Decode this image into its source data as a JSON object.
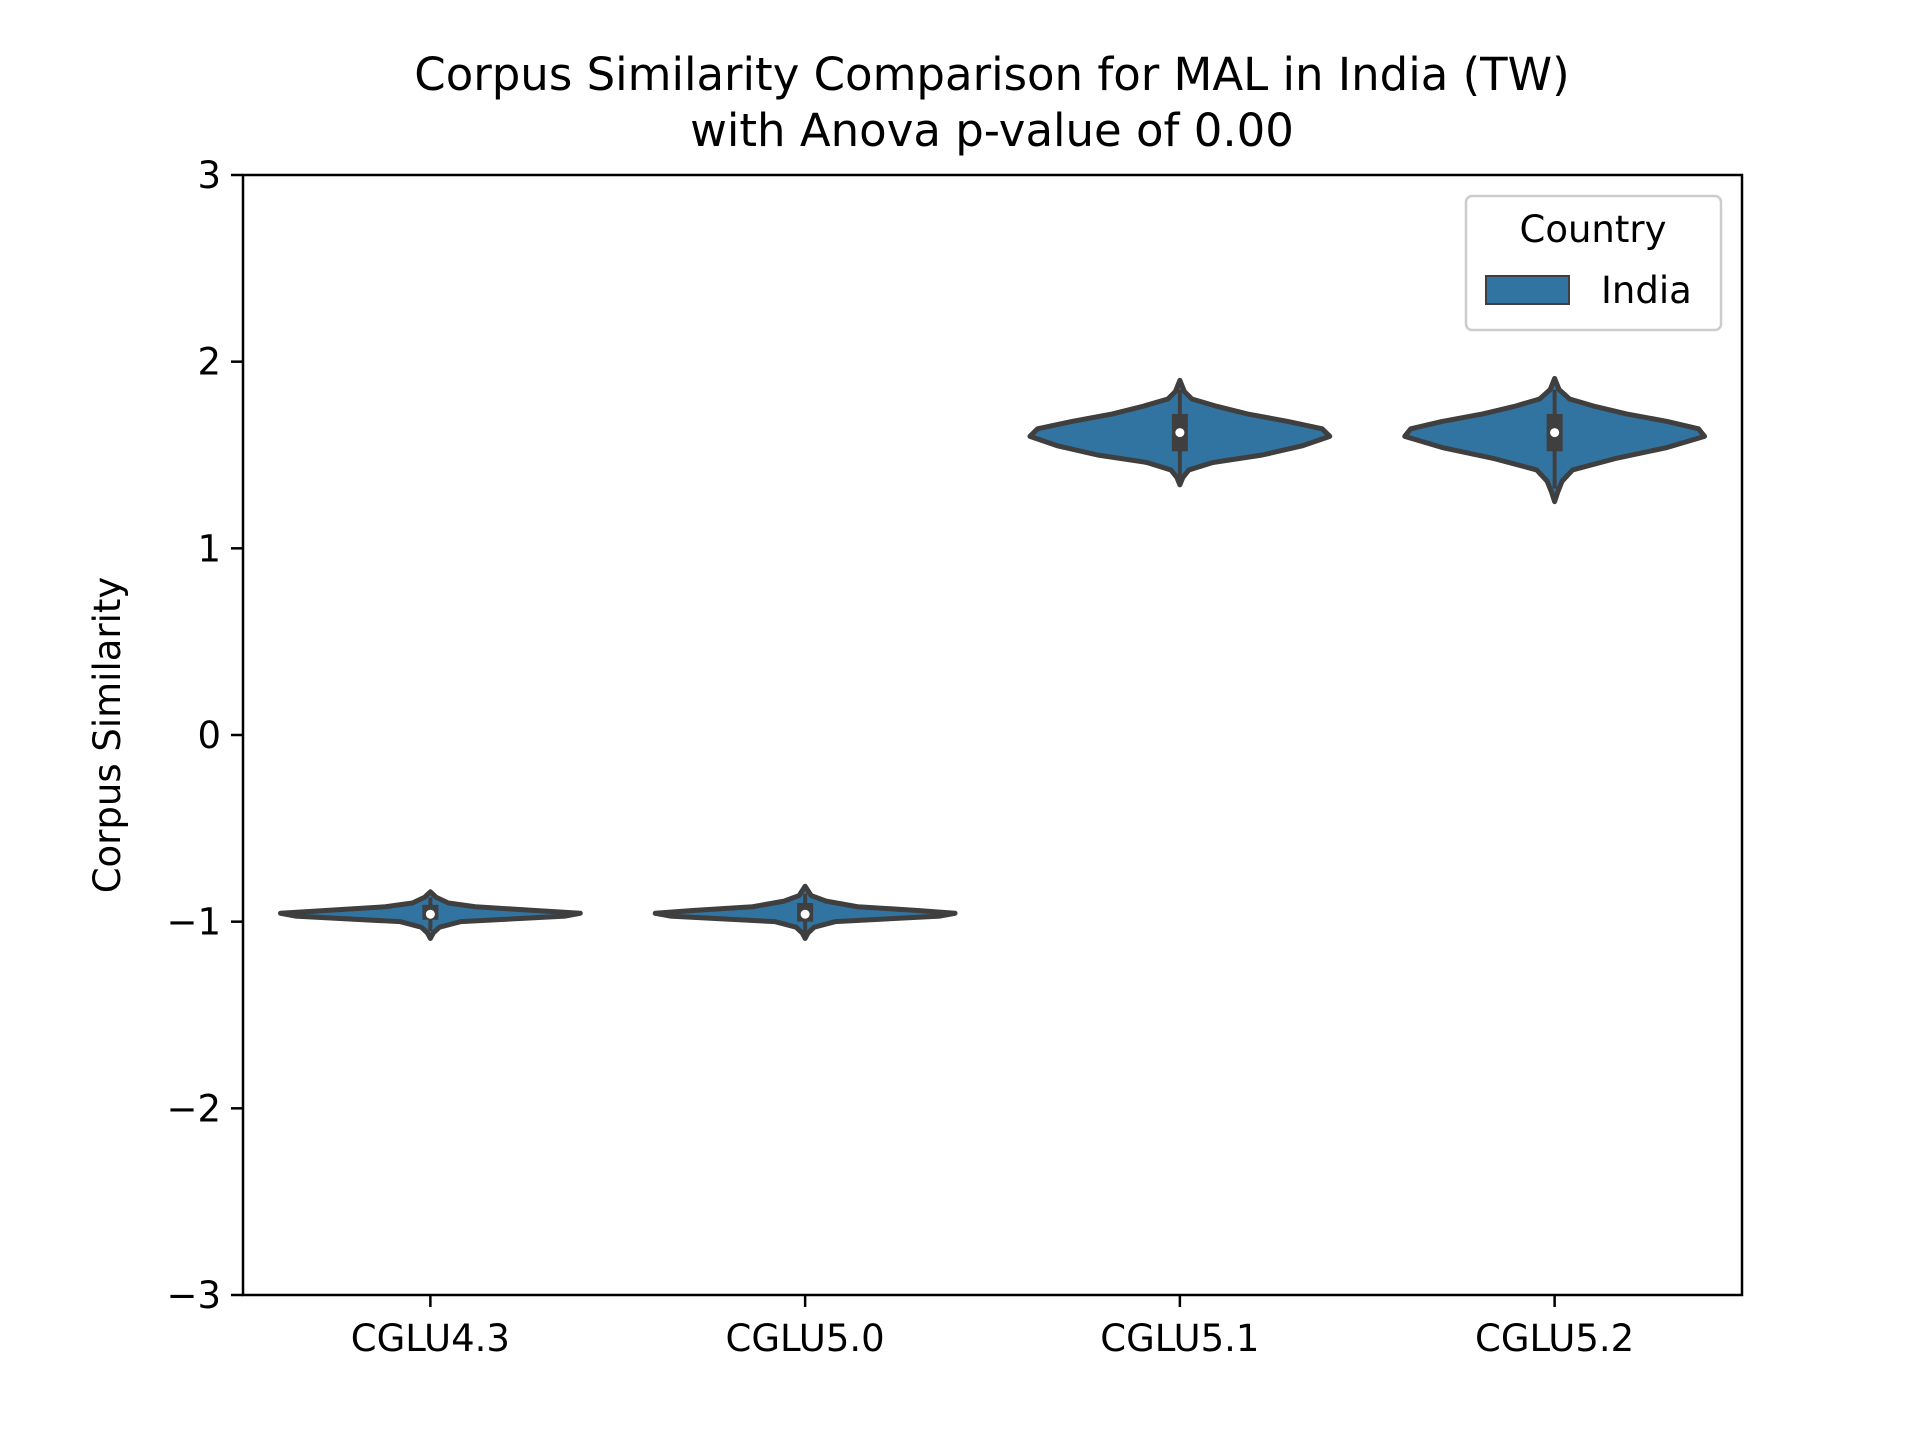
{
  "chart_data": {
    "type": "violin",
    "title_lines": [
      "Corpus Similarity Comparison for MAL in India (TW)",
      "with Anova p-value of 0.00"
    ],
    "xlabel": "",
    "ylabel": "Corpus Similarity",
    "ylim": [
      -3,
      3
    ],
    "yticks": [
      {
        "value": 3,
        "label": "3"
      },
      {
        "value": 2,
        "label": "2"
      },
      {
        "value": 1,
        "label": "1"
      },
      {
        "value": 0,
        "label": "0"
      },
      {
        "value": -1,
        "label": "−1"
      },
      {
        "value": -2,
        "label": "−2"
      },
      {
        "value": -3,
        "label": "−3"
      }
    ],
    "categories": [
      "CGLU4.3",
      "CGLU5.0",
      "CGLU5.1",
      "CGLU5.2"
    ],
    "legend": {
      "title": "Country",
      "location": "upper right",
      "entries": [
        {
          "label": "India",
          "color": "#3274a1"
        }
      ]
    },
    "series": [
      {
        "name": "India",
        "color": "#3274a1",
        "edge_color": "#3f3f3f",
        "violins": [
          {
            "category": "CGLU4.3",
            "median": -0.96,
            "q1": -0.99,
            "q3": -0.91,
            "whisker_low": -1.05,
            "whisker_high": -0.87,
            "profile": [
              [
                -1.09,
                0.0
              ],
              [
                -1.06,
                0.02
              ],
              [
                -1.03,
                0.06
              ],
              [
                -1.0,
                0.2
              ],
              [
                -0.97,
                0.9
              ],
              [
                -0.955,
                1.0
              ],
              [
                -0.94,
                0.7
              ],
              [
                -0.92,
                0.3
              ],
              [
                -0.9,
                0.12
              ],
              [
                -0.87,
                0.04
              ],
              [
                -0.84,
                0.0
              ]
            ]
          },
          {
            "category": "CGLU5.0",
            "median": -0.96,
            "q1": -1.0,
            "q3": -0.9,
            "whisker_low": -1.06,
            "whisker_high": -0.85,
            "profile": [
              [
                -1.09,
                0.0
              ],
              [
                -1.06,
                0.02
              ],
              [
                -1.03,
                0.06
              ],
              [
                -1.0,
                0.2
              ],
              [
                -0.97,
                0.9
              ],
              [
                -0.955,
                1.0
              ],
              [
                -0.94,
                0.75
              ],
              [
                -0.92,
                0.35
              ],
              [
                -0.89,
                0.14
              ],
              [
                -0.86,
                0.04
              ],
              [
                -0.81,
                0.0
              ]
            ]
          },
          {
            "category": "CGLU5.1",
            "median": 1.62,
            "q1": 1.52,
            "q3": 1.72,
            "whisker_low": 1.38,
            "whisker_high": 1.85,
            "profile": [
              [
                1.34,
                0.0
              ],
              [
                1.38,
                0.02
              ],
              [
                1.42,
                0.06
              ],
              [
                1.46,
                0.22
              ],
              [
                1.5,
                0.55
              ],
              [
                1.55,
                0.82
              ],
              [
                1.6,
                1.0
              ],
              [
                1.64,
                0.95
              ],
              [
                1.68,
                0.72
              ],
              [
                1.72,
                0.45
              ],
              [
                1.76,
                0.25
              ],
              [
                1.8,
                0.08
              ],
              [
                1.84,
                0.03
              ],
              [
                1.9,
                0.0
              ]
            ]
          },
          {
            "category": "CGLU5.2",
            "median": 1.62,
            "q1": 1.52,
            "q3": 1.72,
            "whisker_low": 1.32,
            "whisker_high": 1.85,
            "profile": [
              [
                1.25,
                0.0
              ],
              [
                1.3,
                0.02
              ],
              [
                1.36,
                0.05
              ],
              [
                1.42,
                0.12
              ],
              [
                1.48,
                0.4
              ],
              [
                1.54,
                0.75
              ],
              [
                1.6,
                1.0
              ],
              [
                1.64,
                0.96
              ],
              [
                1.68,
                0.75
              ],
              [
                1.72,
                0.48
              ],
              [
                1.76,
                0.27
              ],
              [
                1.8,
                0.1
              ],
              [
                1.85,
                0.03
              ],
              [
                1.91,
                0.0
              ]
            ]
          }
        ]
      }
    ]
  }
}
